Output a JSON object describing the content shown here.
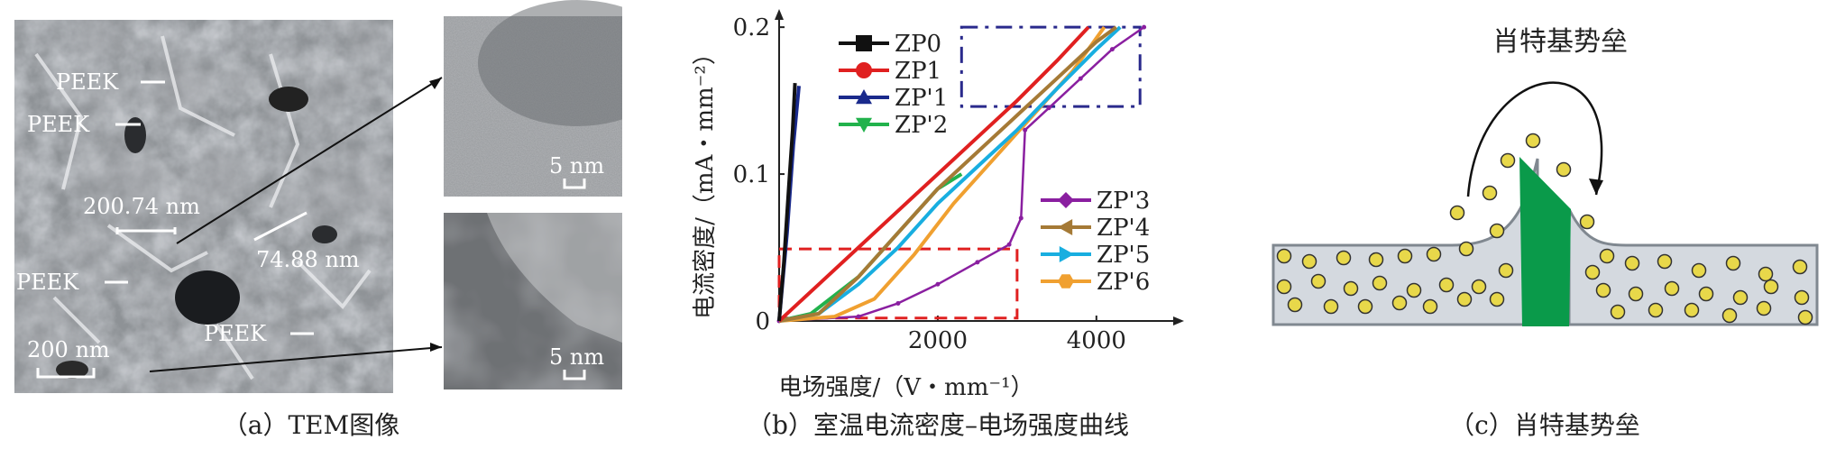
{
  "panel_a": {
    "caption": "（a）TEM图像",
    "labels": {
      "peek1": "PEEK",
      "peek2": "PEEK",
      "peek3": "PEEK",
      "peek4": "PEEK",
      "dist1": "200.74 nm",
      "dist2": "74.88 nm",
      "scale_main": "200 nm",
      "scale_inset_top": "5 nm",
      "scale_inset_bottom": "5 nm"
    }
  },
  "panel_b": {
    "caption": "（b）室温电流密度–电场强度曲线",
    "chart_data": {
      "type": "line",
      "xlabel": "电场强度/（V・mm⁻¹）",
      "ylabel": "电流密度/（mA・mm⁻²）",
      "xlim": [
        0,
        4900
      ],
      "ylim": [
        0,
        0.205
      ],
      "x_ticks": [
        "2000",
        "4000"
      ],
      "x_tick_values": [
        2000,
        4000
      ],
      "y_ticks": [
        "0",
        "0.1",
        "0.2"
      ],
      "y_tick_values": [
        0,
        0.1,
        0.2
      ],
      "legend_top_left": [
        "ZP0",
        "ZP1",
        "ZP'1",
        "ZP'2"
      ],
      "legend_right": [
        "ZP'3",
        "ZP'4",
        "ZP'5",
        "ZP'6"
      ],
      "series": [
        {
          "name": "ZP0",
          "color": "#111111",
          "marker": "square",
          "points": [
            [
              0,
              0
            ],
            [
              60,
              0.04
            ],
            [
              120,
              0.09
            ],
            [
              170,
              0.13
            ],
            [
              200,
              0.162
            ]
          ]
        },
        {
          "name": "ZP1",
          "color": "#e02020",
          "marker": "circle",
          "points": [
            [
              0,
              0
            ],
            [
              500,
              0.025
            ],
            [
              1000,
              0.05
            ],
            [
              1500,
              0.075
            ],
            [
              2000,
              0.1
            ],
            [
              2500,
              0.125
            ],
            [
              3000,
              0.15
            ],
            [
              3500,
              0.177
            ],
            [
              3900,
              0.2
            ]
          ]
        },
        {
          "name": "ZP'1",
          "color": "#1a2a8c",
          "marker": "triangle-up",
          "points": [
            [
              0,
              0
            ],
            [
              100,
              0.06
            ],
            [
              180,
              0.12
            ],
            [
              250,
              0.16
            ]
          ]
        },
        {
          "name": "ZP'2",
          "color": "#22b24c",
          "marker": "triangle-down",
          "points": [
            [
              0,
              0
            ],
            [
              400,
              0.005
            ],
            [
              1000,
              0.03
            ],
            [
              1500,
              0.06
            ],
            [
              2000,
              0.09
            ],
            [
              2300,
              0.1
            ]
          ]
        },
        {
          "name": "ZP'3",
          "color": "#8a1fa0",
          "marker": "diamond",
          "points": [
            [
              0,
              0
            ],
            [
              1000,
              0.003
            ],
            [
              1500,
              0.012
            ],
            [
              2000,
              0.025
            ],
            [
              2500,
              0.04
            ],
            [
              2900,
              0.052
            ],
            [
              3050,
              0.07
            ],
            [
              3100,
              0.13
            ],
            [
              3400,
              0.145
            ],
            [
              3800,
              0.165
            ],
            [
              4200,
              0.185
            ],
            [
              4600,
              0.2
            ]
          ]
        },
        {
          "name": "ZP'4",
          "color": "#a57a36",
          "marker": "triangle-left",
          "points": [
            [
              0,
              0
            ],
            [
              500,
              0.005
            ],
            [
              1000,
              0.03
            ],
            [
              1500,
              0.06
            ],
            [
              2000,
              0.09
            ],
            [
              2500,
              0.115
            ],
            [
              3000,
              0.14
            ],
            [
              3500,
              0.165
            ],
            [
              4000,
              0.19
            ],
            [
              4250,
              0.2
            ]
          ]
        },
        {
          "name": "ZP'5",
          "color": "#18aee0",
          "marker": "triangle-right",
          "points": [
            [
              0,
              0
            ],
            [
              500,
              0.005
            ],
            [
              1000,
              0.025
            ],
            [
              1500,
              0.05
            ],
            [
              2000,
              0.08
            ],
            [
              2500,
              0.105
            ],
            [
              3000,
              0.13
            ],
            [
              3500,
              0.158
            ],
            [
              4000,
              0.185
            ],
            [
              4300,
              0.2
            ]
          ]
        },
        {
          "name": "ZP'6",
          "color": "#f0a030",
          "marker": "hexagon",
          "points": [
            [
              0,
              0
            ],
            [
              700,
              0.003
            ],
            [
              1200,
              0.015
            ],
            [
              1700,
              0.045
            ],
            [
              2200,
              0.08
            ],
            [
              2700,
              0.11
            ],
            [
              3200,
              0.14
            ],
            [
              3700,
              0.17
            ],
            [
              4100,
              0.2
            ]
          ]
        }
      ]
    }
  },
  "panel_c": {
    "caption": "（c）肖特基势垒",
    "title": "肖特基势垒"
  },
  "colors": {
    "barrier": "#0a9a4a",
    "electron": "#e8d84a",
    "band": "#d4d9df",
    "zoom_box_red": "#e02020",
    "zoom_box_blue": "#2a2a8c"
  }
}
